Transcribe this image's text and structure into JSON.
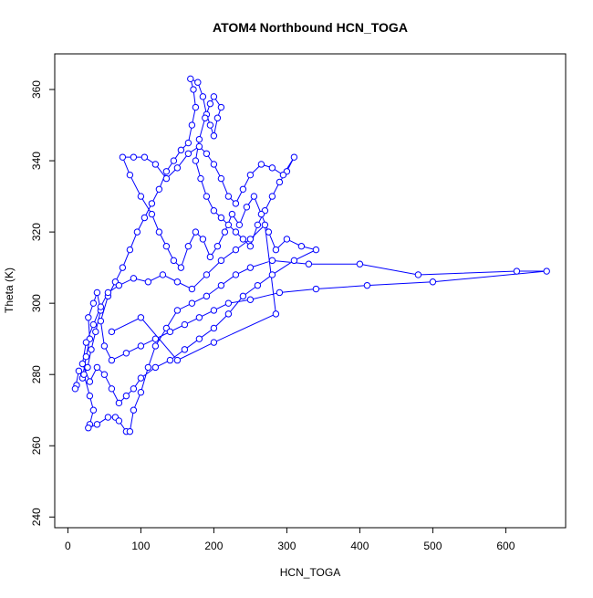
{
  "chart_data": {
    "type": "line",
    "markers": true,
    "title": "ATOM4 Northbound HCN_TOGA",
    "x_label": "HCN_TOGA",
    "y_label": "Theta (K)",
    "x": [
      12,
      10,
      15,
      20,
      25,
      30,
      28,
      35,
      40,
      45,
      38,
      32,
      27,
      22,
      30,
      35,
      30,
      28,
      40,
      55,
      65,
      70,
      80,
      85,
      90,
      100,
      110,
      120,
      135,
      150,
      170,
      190,
      210,
      230,
      250,
      280,
      330,
      400,
      480,
      615,
      656,
      500,
      410,
      340,
      290,
      250,
      220,
      200,
      180,
      160,
      140,
      120,
      100,
      80,
      60,
      50,
      45,
      55,
      65,
      75,
      85,
      95,
      105,
      115,
      125,
      135,
      145,
      155,
      165,
      170,
      175,
      172,
      168,
      178,
      185,
      190,
      195,
      200,
      205,
      210,
      200,
      195,
      188,
      180,
      175,
      182,
      190,
      200,
      210,
      220,
      230,
      240,
      250,
      260,
      270,
      280,
      290,
      300,
      310,
      295,
      280,
      265,
      250,
      240,
      230,
      220,
      210,
      200,
      190,
      180,
      165,
      150,
      135,
      120,
      105,
      90,
      75,
      85,
      100,
      115,
      125,
      135,
      145,
      155,
      165,
      175,
      185,
      195,
      205,
      215,
      225,
      235,
      245,
      255,
      265,
      275,
      285,
      300,
      320,
      340,
      310,
      280,
      260,
      240,
      220,
      200,
      180,
      160,
      140,
      120,
      100,
      90,
      80,
      70,
      60,
      50,
      40,
      30,
      20,
      25,
      35,
      45,
      55,
      70,
      90,
      110,
      130,
      150,
      170,
      190,
      210,
      230,
      250,
      270,
      285,
      200,
      150,
      100,
      60
    ],
    "series": [
      {
        "color": "#0000ff",
        "values": [
          277,
          276,
          281,
          279,
          285,
          290,
          296,
          300,
          303,
          298,
          292,
          287,
          282,
          280,
          274,
          270,
          266,
          265,
          266,
          268,
          268,
          267,
          264,
          264,
          270,
          275,
          282,
          288,
          293,
          298,
          300,
          302,
          305,
          308,
          310,
          312,
          311,
          311,
          308,
          309,
          309,
          306,
          305,
          304,
          303,
          301,
          300,
          298,
          296,
          294,
          292,
          290,
          288,
          286,
          284,
          288,
          295,
          302,
          306,
          310,
          315,
          320,
          324,
          328,
          332,
          337,
          340,
          343,
          345,
          350,
          355,
          360,
          363,
          362,
          358,
          353,
          350,
          347,
          352,
          355,
          358,
          356,
          352,
          346,
          340,
          335,
          330,
          326,
          324,
          322,
          320,
          318,
          316,
          322,
          326,
          330,
          334,
          337,
          341,
          336,
          338,
          339,
          336,
          332,
          328,
          330,
          335,
          339,
          342,
          344,
          342,
          338,
          335,
          339,
          341,
          341,
          341,
          336,
          330,
          325,
          320,
          316,
          312,
          310,
          316,
          320,
          318,
          313,
          316,
          320,
          325,
          322,
          327,
          330,
          325,
          320,
          315,
          318,
          316,
          315,
          312,
          308,
          305,
          302,
          297,
          293,
          290,
          287,
          284,
          282,
          279,
          276,
          274,
          272,
          276,
          280,
          282,
          278,
          283,
          289,
          294,
          299,
          303,
          305,
          307,
          306,
          308,
          306,
          304,
          308,
          312,
          315,
          318,
          322,
          297,
          289,
          284,
          296,
          292
        ]
      }
    ],
    "xlim": [
      -18,
      682
    ],
    "ylim": [
      237,
      370
    ],
    "xticks": [
      0,
      100,
      200,
      300,
      400,
      500,
      600
    ],
    "yticks": [
      240,
      260,
      280,
      300,
      320,
      340,
      360
    ]
  }
}
